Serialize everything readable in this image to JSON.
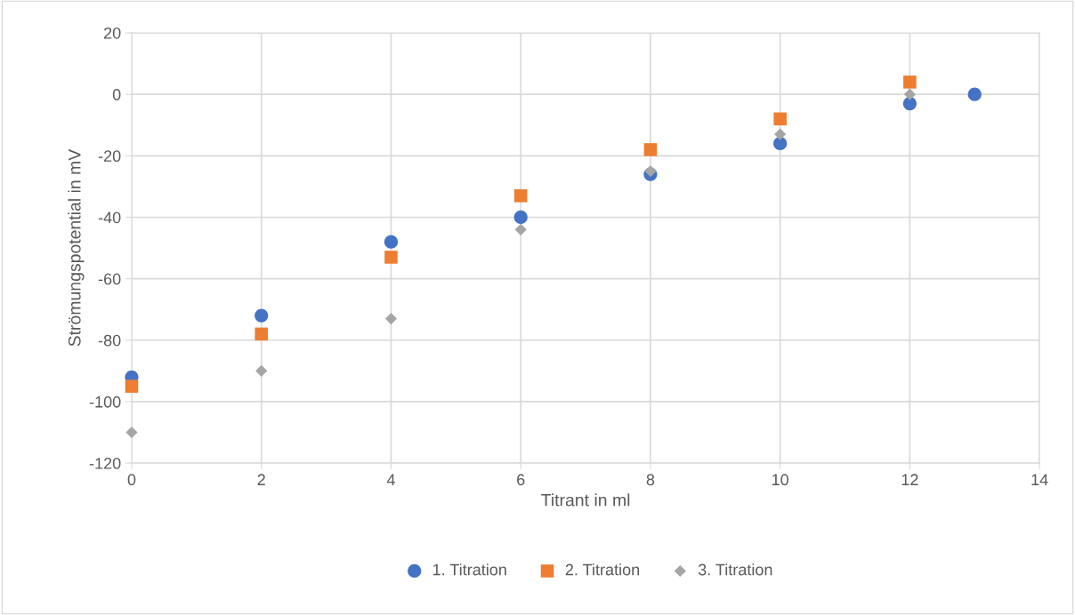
{
  "chart_data": {
    "type": "scatter",
    "xlabel": "Titrant in ml",
    "ylabel": "Strömungspotential in mV",
    "xlim": [
      0,
      14
    ],
    "xticks": [
      0,
      2,
      4,
      6,
      8,
      10,
      12,
      14
    ],
    "ylim": [
      -120,
      20
    ],
    "yticks": [
      -120,
      -100,
      -80,
      -60,
      -40,
      -20,
      0,
      20
    ],
    "grid": true,
    "legend": "bottom",
    "series": [
      {
        "name": "1. Titration",
        "color": "#4472c4",
        "marker": "circle",
        "x": [
          0,
          2,
          4,
          6,
          8,
          10,
          12,
          13
        ],
        "values": [
          -92,
          -72,
          -48,
          -40,
          -26,
          -16,
          -3,
          0
        ]
      },
      {
        "name": "2. Titration",
        "color": "#ed7d31",
        "marker": "square",
        "x": [
          0,
          2,
          4,
          6,
          8,
          10,
          12
        ],
        "values": [
          -95,
          -78,
          -53,
          -33,
          -18,
          -8,
          4
        ]
      },
      {
        "name": "3. Titration",
        "color": "#a5a5a5",
        "marker": "diamond",
        "x": [
          0,
          2,
          4,
          6,
          8,
          10,
          12
        ],
        "values": [
          -110,
          -90,
          -73,
          -44,
          -25,
          -13,
          0
        ]
      }
    ]
  }
}
